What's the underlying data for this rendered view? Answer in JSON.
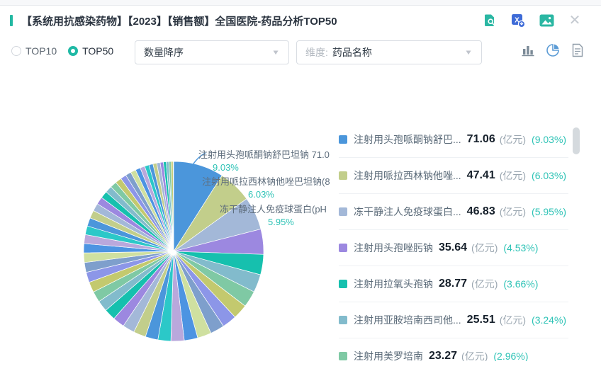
{
  "header": {
    "title": "【系统用抗感染药物】【2023】【销售额】全国医院-药品分析TOP50"
  },
  "controls": {
    "radio_top10": "TOP10",
    "radio_top50": "TOP50",
    "sort_value": "数量降序",
    "dimension_label": "维度:",
    "dimension_value": "药品名称"
  },
  "colors": {
    "accent": "#23b8a2",
    "pct_text": "#2ec3b6",
    "active_view_icon": "#5b9bd5"
  },
  "chart_data": {
    "type": "pie",
    "title": "系统用抗感染药物 2023 销售额 全国医院 药品分析TOP50",
    "unit": "亿元",
    "legend_position": "right",
    "items": [
      {
        "name": "注射用头孢哌酮钠舒巴...",
        "value": "71.06",
        "pct": "9.03%"
      },
      {
        "name": "注射用哌拉西林钠他唑...",
        "value": "47.41",
        "pct": "6.03%"
      },
      {
        "name": "冻干静注人免疫球蛋白...",
        "value": "46.83",
        "pct": "5.95%"
      },
      {
        "name": "注射用头孢唑肟钠",
        "value": "35.64",
        "pct": "4.53%"
      },
      {
        "name": "注射用拉氧头孢钠",
        "value": "28.77",
        "pct": "3.66%"
      },
      {
        "name": "注射用亚胺培南西司他...",
        "value": "25.51",
        "pct": "3.24%"
      },
      {
        "name": "注射用美罗培南",
        "value": "23.27",
        "pct": "2.96%"
      }
    ],
    "callouts": [
      {
        "text": "注射用头孢哌酮钠舒巴坦钠 71.0",
        "pct": "9.03%"
      },
      {
        "text": "注射用哌拉西林钠他唑巴坦钠(8",
        "pct": "6.03%"
      },
      {
        "text": "冻干静注人免疫球蛋白(pH",
        "pct": "5.95%"
      }
    ],
    "slice_pcts": [
      9.03,
      6.03,
      5.95,
      4.53,
      3.66,
      3.24,
      2.96,
      2.65,
      2.6,
      2.54,
      2.49,
      2.43,
      2.38,
      2.32,
      2.27,
      2.21,
      2.16,
      2.1,
      2.05,
      1.99,
      1.94,
      1.88,
      1.83,
      1.77,
      1.72,
      1.66,
      1.61,
      1.55,
      1.5,
      1.44,
      1.39,
      1.34,
      1.28,
      1.23,
      1.17,
      1.12,
      1.06,
      1.01,
      0.95,
      0.9,
      0.84,
      0.79,
      0.73,
      0.68,
      0.62,
      0.57,
      0.51,
      0.46,
      0.4,
      0.35
    ],
    "palette": [
      "#4b96db",
      "#c2ce8b",
      "#a3b8d8",
      "#9c88e0",
      "#16c0ae",
      "#82bbcc",
      "#7fc9a4",
      "#c3c96e",
      "#8c96e8",
      "#7e9fcc",
      "#cfe0a0",
      "#4d94e2",
      "#b9a8dc",
      "#2bc8c8"
    ]
  },
  "legend": {
    "unit_label": "(亿元)"
  }
}
